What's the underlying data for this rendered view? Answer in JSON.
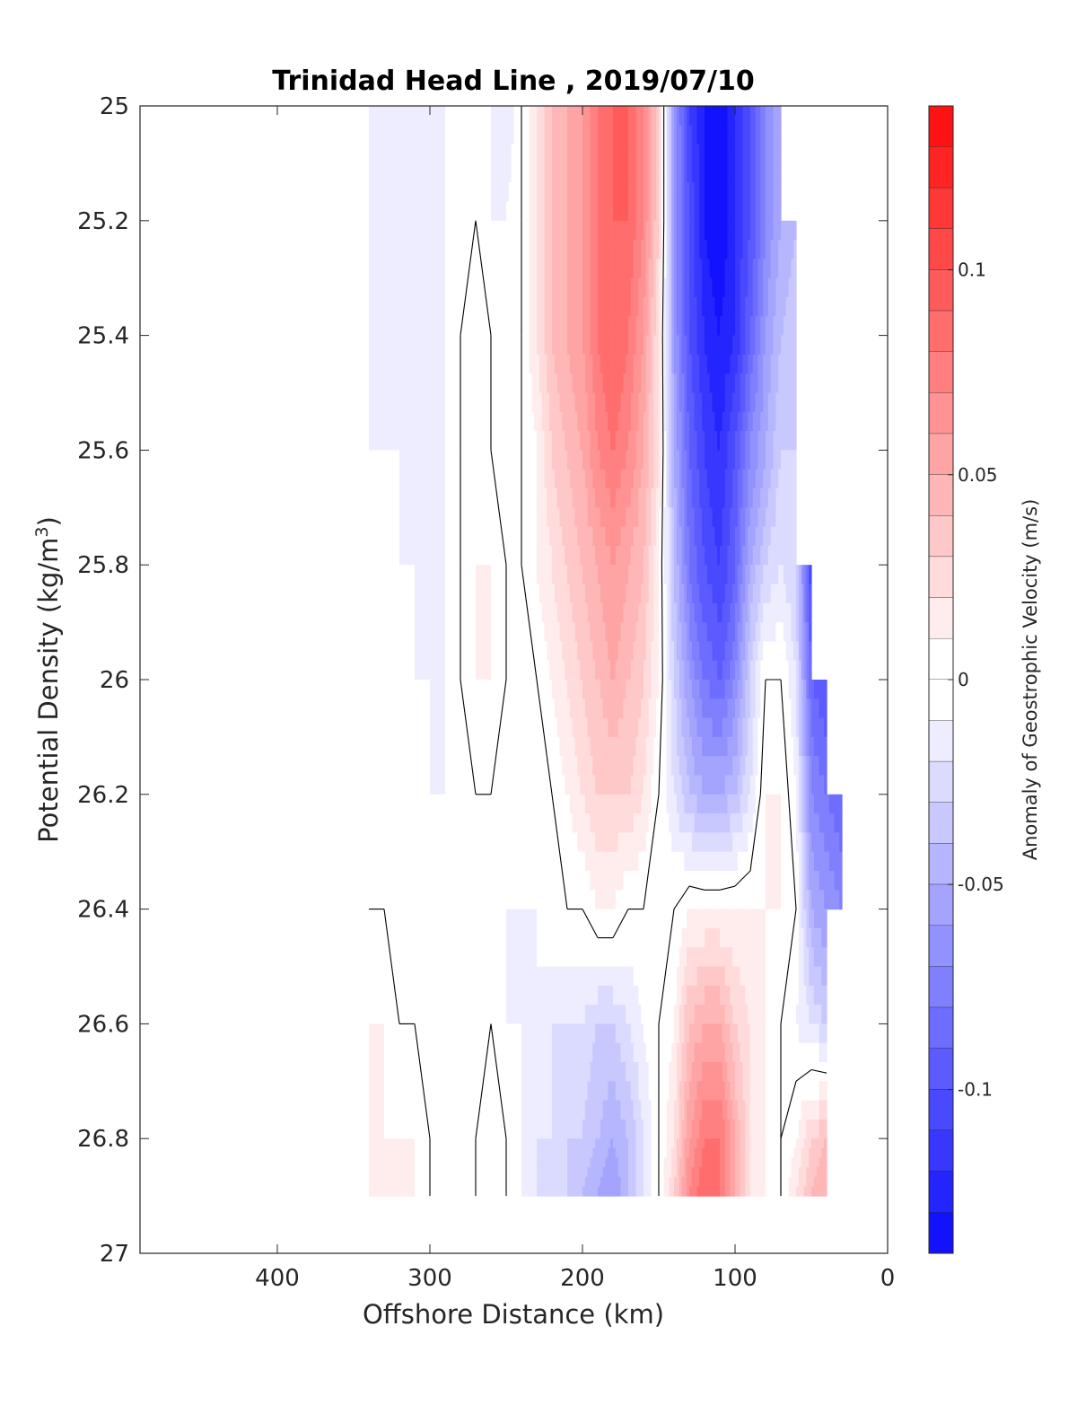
{
  "chart_data": {
    "type": "heatmap",
    "title": "Trinidad Head Line , 2019/07/10",
    "xlabel": "Offshore Distance (km)",
    "ylabel": "Potential Density (kg/m^3)",
    "ylabel_parts": {
      "main": "Potential Density (kg/m",
      "sup": "3",
      "end": ")"
    },
    "x_axis": {
      "lim": [
        490,
        0
      ],
      "reversed": true,
      "ticks": [
        400,
        300,
        200,
        100,
        0
      ],
      "tick_labels": [
        "400",
        "300",
        "200",
        "100",
        "0"
      ]
    },
    "y_axis": {
      "lim": [
        25,
        27
      ],
      "reversed": true,
      "ticks": [
        25,
        25.2,
        25.4,
        25.6,
        25.8,
        26,
        26.2,
        26.4,
        26.6,
        26.8,
        27
      ],
      "tick_labels": [
        "25",
        "25.2",
        "25.4",
        "25.6",
        "25.8",
        "26",
        "26.2",
        "26.4",
        "26.6",
        "26.8",
        "27"
      ]
    },
    "grid": false,
    "colorbar": {
      "label": "Anomaly of Geostrophic Velocity (m/s)",
      "lim": [
        -0.14,
        0.14
      ],
      "levels_step": 0.01,
      "ticks": [
        0.1,
        0.05,
        0,
        -0.05,
        -0.1
      ],
      "tick_labels": [
        "0.1",
        "0.05",
        "0",
        "-0.05",
        "-0.1"
      ],
      "colormap": {
        "negative": "#0000ff",
        "zero": "#ffffff",
        "positive": "#ff0000"
      }
    },
    "data_extent": {
      "x": [
        340,
        30
      ],
      "y": [
        25,
        26.9
      ]
    },
    "distance_km": [
      340,
      330,
      320,
      310,
      300,
      290,
      280,
      270,
      260,
      250,
      240,
      230,
      220,
      210,
      200,
      190,
      180,
      170,
      160,
      150,
      140,
      130,
      120,
      110,
      100,
      90,
      80,
      70,
      60,
      50,
      40,
      30
    ],
    "density": [
      25.0,
      25.2,
      25.4,
      25.6,
      25.8,
      26.0,
      26.2,
      26.4,
      26.6,
      26.8,
      26.9
    ],
    "velocity_anomaly": [
      [
        -0.02,
        -0.02,
        -0.01,
        -0.01,
        -0.01,
        -0.01,
        0.0,
        0.0,
        -0.01,
        -0.02,
        0.0,
        0.02,
        0.04,
        0.05,
        0.06,
        0.08,
        0.09,
        0.09,
        0.07,
        0.03,
        -0.06,
        -0.11,
        -0.13,
        -0.14,
        -0.12,
        -0.1,
        -0.07,
        -0.05,
        null,
        null,
        null,
        null
      ],
      [
        -0.01,
        -0.02,
        -0.01,
        -0.01,
        -0.01,
        -0.01,
        0.0,
        0.0,
        -0.01,
        -0.01,
        0.0,
        0.02,
        0.04,
        0.05,
        0.06,
        0.08,
        0.09,
        0.09,
        0.07,
        0.03,
        -0.06,
        -0.1,
        -0.13,
        -0.14,
        -0.12,
        -0.1,
        -0.07,
        -0.05,
        -0.04,
        null,
        null,
        null
      ],
      [
        -0.01,
        -0.01,
        -0.01,
        -0.01,
        -0.01,
        -0.01,
        0.0,
        0.01,
        0.0,
        -0.01,
        0.0,
        0.02,
        0.04,
        0.05,
        0.06,
        0.08,
        0.09,
        0.08,
        0.06,
        0.02,
        -0.06,
        -0.1,
        -0.12,
        -0.13,
        -0.12,
        -0.09,
        -0.06,
        -0.04,
        -0.03,
        null,
        null,
        null
      ],
      [
        -0.01,
        -0.01,
        -0.01,
        -0.01,
        -0.01,
        -0.01,
        0.0,
        0.01,
        0.0,
        -0.01,
        0.0,
        0.01,
        0.03,
        0.04,
        0.05,
        0.07,
        0.08,
        0.07,
        0.05,
        0.02,
        -0.05,
        -0.09,
        -0.11,
        -0.12,
        -0.1,
        -0.07,
        -0.05,
        -0.03,
        -0.03,
        null,
        null,
        null
      ],
      [
        0.0,
        0.0,
        -0.01,
        -0.01,
        -0.01,
        -0.01,
        0.0,
        0.01,
        0.01,
        0.0,
        0.0,
        0.01,
        0.02,
        0.03,
        0.04,
        0.05,
        0.06,
        0.05,
        0.04,
        0.01,
        -0.04,
        -0.08,
        -0.1,
        -0.11,
        -0.09,
        -0.05,
        -0.03,
        -0.02,
        -0.03,
        -0.11,
        null,
        null
      ],
      [
        0.0,
        0.0,
        0.0,
        -0.01,
        -0.01,
        -0.01,
        0.0,
        0.01,
        0.01,
        0.0,
        0.0,
        0.0,
        0.01,
        0.02,
        0.03,
        0.04,
        0.05,
        0.04,
        0.03,
        0.01,
        -0.03,
        -0.06,
        -0.08,
        -0.09,
        -0.07,
        -0.03,
        0.0,
        0.0,
        -0.02,
        -0.09,
        -0.1,
        null
      ],
      [
        0.0,
        0.0,
        0.0,
        0.0,
        -0.01,
        -0.01,
        0.0,
        0.0,
        0.0,
        -0.01,
        0.0,
        0.0,
        0.0,
        0.01,
        0.02,
        0.03,
        0.03,
        0.03,
        0.02,
        0.0,
        -0.02,
        -0.04,
        -0.05,
        -0.05,
        -0.04,
        -0.02,
        0.01,
        0.01,
        -0.01,
        -0.07,
        -0.08,
        -0.09
      ],
      [
        0.0,
        0.0,
        0.0,
        0.0,
        0.0,
        -0.01,
        0.0,
        0.0,
        0.0,
        -0.01,
        -0.01,
        -0.01,
        0.0,
        0.0,
        0.0,
        0.01,
        0.01,
        0.0,
        0.0,
        0.0,
        0.0,
        0.01,
        0.01,
        0.01,
        0.01,
        0.01,
        0.01,
        0.01,
        0.0,
        -0.05,
        -0.06,
        -0.07
      ],
      [
        0.01,
        0.01,
        0.0,
        0.0,
        0.0,
        0.0,
        0.0,
        0.0,
        0.0,
        -0.01,
        -0.01,
        -0.01,
        -0.02,
        -0.02,
        -0.02,
        -0.03,
        -0.03,
        -0.02,
        -0.01,
        0.0,
        0.01,
        0.04,
        0.05,
        0.05,
        0.03,
        0.02,
        0.01,
        0.0,
        -0.01,
        -0.02,
        -0.03,
        null
      ],
      [
        0.02,
        0.01,
        0.01,
        0.01,
        0.0,
        0.0,
        0.0,
        0.0,
        0.01,
        0.0,
        -0.01,
        -0.02,
        -0.02,
        -0.03,
        -0.03,
        -0.04,
        -0.05,
        -0.04,
        -0.02,
        0.0,
        0.02,
        0.06,
        0.08,
        0.08,
        0.05,
        0.02,
        0.01,
        0.0,
        0.01,
        0.03,
        0.04,
        null
      ],
      [
        0.02,
        0.02,
        0.01,
        0.01,
        0.0,
        0.0,
        0.0,
        0.0,
        0.01,
        0.0,
        -0.01,
        -0.02,
        -0.02,
        -0.03,
        -0.04,
        -0.05,
        -0.06,
        -0.04,
        -0.02,
        0.0,
        0.03,
        0.07,
        0.09,
        0.08,
        0.05,
        0.02,
        0.01,
        0.0,
        0.02,
        0.04,
        0.05,
        null
      ]
    ]
  }
}
